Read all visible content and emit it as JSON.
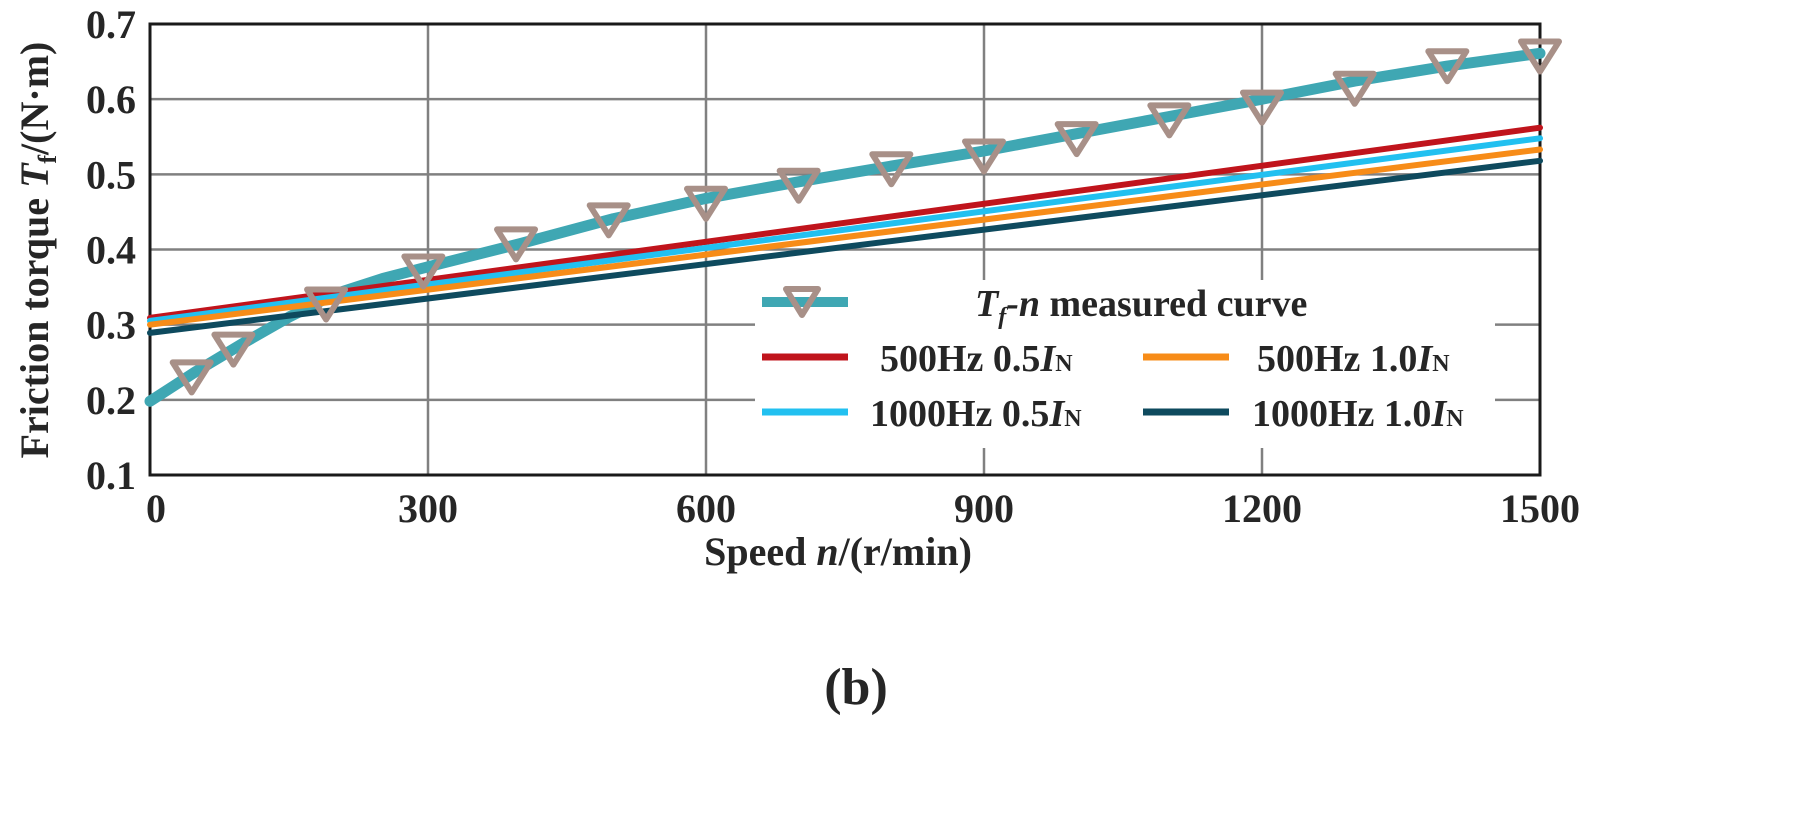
{
  "panel_label": "(b)",
  "chart_data": {
    "type": "line",
    "xlabel": "Speed n/(r/min)",
    "ylabel": "Friction torque Tf/(N·m)",
    "xlim": [
      0,
      1500
    ],
    "ylim": [
      0.1,
      0.7
    ],
    "xticks": [
      "0",
      "300",
      "600",
      "900",
      "1200",
      "1500"
    ],
    "yticks": [
      "0.1",
      "0.2",
      "0.3",
      "0.4",
      "0.5",
      "0.6",
      "0.7"
    ],
    "grid": true,
    "legend_position": "lower-right",
    "measured": {
      "name": "Tf-n measured curve",
      "color": "#3fa7b3",
      "marker_color": "#a89088",
      "marker": "triangle-down",
      "fit_x": [
        0,
        50,
        100,
        150,
        200,
        250,
        300,
        400,
        500,
        600,
        700,
        800,
        900,
        1000,
        1100,
        1200,
        1300,
        1400,
        1500
      ],
      "fit_y": [
        0.198,
        0.238,
        0.275,
        0.31,
        0.341,
        0.361,
        0.377,
        0.408,
        0.441,
        0.468,
        0.49,
        0.511,
        0.531,
        0.554,
        0.577,
        0.6,
        0.624,
        0.644,
        0.661
      ],
      "points_x": [
        45,
        90,
        190,
        295,
        395,
        495,
        600,
        700,
        800,
        900,
        1000,
        1100,
        1200,
        1300,
        1400,
        1500
      ],
      "points_y": [
        0.233,
        0.27,
        0.33,
        0.374,
        0.41,
        0.442,
        0.464,
        0.488,
        0.51,
        0.527,
        0.55,
        0.575,
        0.592,
        0.617,
        0.647,
        0.66
      ]
    },
    "series": [
      {
        "name": "500Hz 0.5IN",
        "color": "#c0141c",
        "x": [
          0,
          1500
        ],
        "y": [
          0.309,
          0.562
        ]
      },
      {
        "name": "1000Hz 0.5IN",
        "color": "#22c0f0",
        "x": [
          0,
          1500
        ],
        "y": [
          0.305,
          0.548
        ]
      },
      {
        "name": "500Hz 1.0IN",
        "color": "#f78c18",
        "x": [
          0,
          1500
        ],
        "y": [
          0.3,
          0.533
        ]
      },
      {
        "name": "1000Hz 1.0IN",
        "color": "#0e4a5e",
        "x": [
          0,
          1500
        ],
        "y": [
          0.289,
          0.518
        ]
      }
    ]
  }
}
